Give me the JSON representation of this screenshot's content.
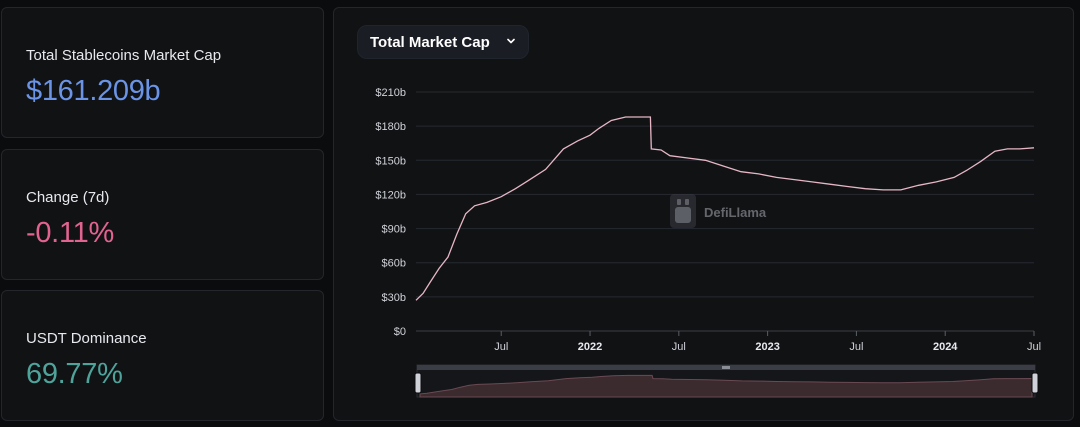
{
  "stats": {
    "market_cap": {
      "label": "Total Stablecoins Market Cap",
      "value": "$161.209b",
      "color": "#6b94e6"
    },
    "change": {
      "label": "Change (7d)",
      "value": "-0.11%",
      "color": "#e2638f"
    },
    "dominance": {
      "label": "USDT Dominance",
      "value": "69.77%",
      "color": "#4ea39b"
    }
  },
  "chart": {
    "metric_select": {
      "label": "Total Market Cap",
      "icon": "chevron-down-icon"
    },
    "watermark": "DefiLlama",
    "line_color": "#e6b6c4",
    "grid_color": "#262931"
  },
  "chart_data": {
    "type": "line",
    "title": "",
    "y_ticks": [
      "$0",
      "$30b",
      "$60b",
      "$90b",
      "$120b",
      "$150b",
      "$180b",
      "$210b"
    ],
    "ylim": [
      0,
      210
    ],
    "x_ticks": [
      {
        "label": "Jul",
        "t": 2021.5,
        "bold": false
      },
      {
        "label": "2022",
        "t": 2022.0,
        "bold": true
      },
      {
        "label": "Jul",
        "t": 2022.5,
        "bold": false
      },
      {
        "label": "2023",
        "t": 2023.0,
        "bold": true
      },
      {
        "label": "Jul",
        "t": 2023.5,
        "bold": false
      },
      {
        "label": "2024",
        "t": 2024.0,
        "bold": true
      },
      {
        "label": "Jul",
        "t": 2024.5,
        "bold": false
      }
    ],
    "xlim": [
      2021.02,
      2024.5
    ],
    "series": [
      {
        "values": [
          [
            2021.02,
            27
          ],
          [
            2021.06,
            33
          ],
          [
            2021.1,
            43
          ],
          [
            2021.15,
            55
          ],
          [
            2021.2,
            65
          ],
          [
            2021.25,
            85
          ],
          [
            2021.3,
            103
          ],
          [
            2021.35,
            110
          ],
          [
            2021.42,
            113
          ],
          [
            2021.5,
            118
          ],
          [
            2021.58,
            125
          ],
          [
            2021.65,
            132
          ],
          [
            2021.75,
            142
          ],
          [
            2021.85,
            160
          ],
          [
            2021.93,
            167
          ],
          [
            2022.0,
            172
          ],
          [
            2022.05,
            178
          ],
          [
            2022.12,
            185
          ],
          [
            2022.2,
            188
          ],
          [
            2022.26,
            188
          ],
          [
            2022.34,
            188
          ],
          [
            2022.345,
            160
          ],
          [
            2022.4,
            159
          ],
          [
            2022.45,
            154
          ],
          [
            2022.55,
            152
          ],
          [
            2022.65,
            150
          ],
          [
            2022.75,
            145
          ],
          [
            2022.85,
            140
          ],
          [
            2022.95,
            138
          ],
          [
            2023.05,
            135
          ],
          [
            2023.15,
            133
          ],
          [
            2023.25,
            131
          ],
          [
            2023.35,
            129
          ],
          [
            2023.45,
            127
          ],
          [
            2023.55,
            125
          ],
          [
            2023.65,
            124
          ],
          [
            2023.75,
            124
          ],
          [
            2023.85,
            128
          ],
          [
            2023.95,
            131
          ],
          [
            2024.05,
            135
          ],
          [
            2024.12,
            141
          ],
          [
            2024.2,
            149
          ],
          [
            2024.28,
            158
          ],
          [
            2024.35,
            160
          ],
          [
            2024.42,
            160
          ],
          [
            2024.5,
            161
          ]
        ]
      }
    ]
  }
}
